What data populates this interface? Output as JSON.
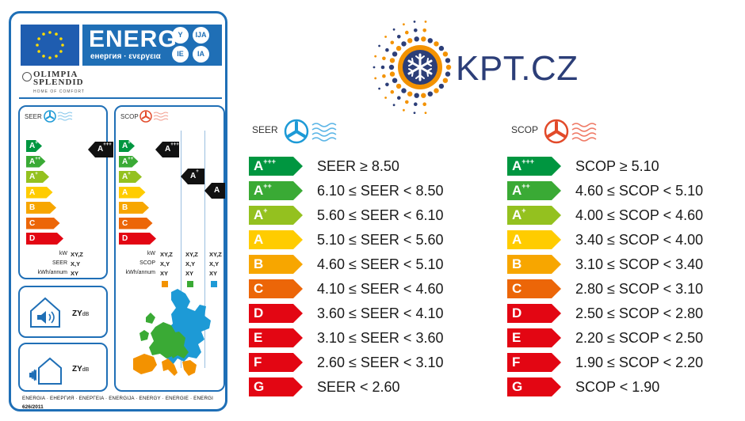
{
  "energy_label": {
    "energ_word": "ENERG",
    "energ_sub": "енергия · ενεργεια",
    "language_bubbles": [
      "Y",
      "IJA",
      "IE",
      "IA"
    ],
    "brand_name": "OLIMPIA SPLENDID",
    "brand_tagline": "HOME OF COMFORT",
    "seer_title": "SEER",
    "scop_title": "SCOP",
    "band_letters": [
      "A",
      "A",
      "A",
      "A",
      "B",
      "C",
      "D"
    ],
    "band_sups": [
      "+++",
      "++",
      "+",
      "",
      "",
      "",
      ""
    ],
    "band_colors": [
      "#009640",
      "#3aaa35",
      "#94c11f",
      "#ffcc00",
      "#f7a600",
      "#ec6608",
      "#e30613"
    ],
    "seer_rating": {
      "letter": "A",
      "sup": "+++"
    },
    "scop_ratings": [
      {
        "letter": "A",
        "sup": "+++"
      },
      {
        "letter": "A",
        "sup": "+"
      },
      {
        "letter": "A",
        "sup": ""
      }
    ],
    "seer_specs": {
      "labels": [
        "kW",
        "SEER",
        "kWh/annum"
      ],
      "values": [
        "XY,Z",
        "X,Y",
        "XY"
      ]
    },
    "scop_specs": {
      "labels": [
        "kW",
        "SCOP",
        "kWh/annum"
      ],
      "columns": [
        [
          "XY,Z",
          "X,Y",
          "XY"
        ],
        [
          "XY,Z",
          "X,Y",
          "XY"
        ],
        [
          "XY,Z",
          "X,Y",
          "XY"
        ]
      ],
      "column_colors": [
        "#f39200",
        "#3aaa35",
        "#1d9ad6"
      ]
    },
    "sound_indoor": "ZY",
    "sound_outdoor": "ZY",
    "sound_unit": "dB",
    "footer_languages": "ENERGIA · ЕНЕРГИЯ · ΕΝΕΡΓΕΙΑ · ENERGIJA · ENERGY · ENERGIE · ENERGI",
    "regulation": "626/2011"
  },
  "logo": {
    "text": "KPT.CZ",
    "icon": "snowflake-sun-icon"
  },
  "seer_table": {
    "title": "SEER",
    "rows": [
      {
        "cls": "A",
        "sup": "+++",
        "color": "#009640",
        "range": "SEER ≥ 8.50"
      },
      {
        "cls": "A",
        "sup": "++",
        "color": "#3aaa35",
        "range": "6.10 ≤ SEER < 8.50"
      },
      {
        "cls": "A",
        "sup": "+",
        "color": "#94c11f",
        "range": "5.60 ≤ SEER < 6.10"
      },
      {
        "cls": "A",
        "sup": "",
        "color": "#ffcc00",
        "range": "5.10 ≤ SEER < 5.60"
      },
      {
        "cls": "B",
        "sup": "",
        "color": "#f7a600",
        "range": "4.60 ≤ SEER < 5.10"
      },
      {
        "cls": "C",
        "sup": "",
        "color": "#ec6608",
        "range": "4.10 ≤ SEER < 4.60"
      },
      {
        "cls": "D",
        "sup": "",
        "color": "#e30613",
        "range": "3.60 ≤ SEER < 4.10"
      },
      {
        "cls": "E",
        "sup": "",
        "color": "#e30613",
        "range": "3.10 ≤ SEER < 3.60"
      },
      {
        "cls": "F",
        "sup": "",
        "color": "#e30613",
        "range": "2.60 ≤ SEER < 3.10"
      },
      {
        "cls": "G",
        "sup": "",
        "color": "#e30613",
        "range": "SEER < 2.60"
      }
    ]
  },
  "scop_table": {
    "title": "SCOP",
    "rows": [
      {
        "cls": "A",
        "sup": "+++",
        "color": "#009640",
        "range": "SCOP ≥ 5.10"
      },
      {
        "cls": "A",
        "sup": "++",
        "color": "#3aaa35",
        "range": "4.60 ≤ SCOP < 5.10"
      },
      {
        "cls": "A",
        "sup": "+",
        "color": "#94c11f",
        "range": "4.00 ≤ SCOP < 4.60"
      },
      {
        "cls": "A",
        "sup": "",
        "color": "#ffcc00",
        "range": "3.40 ≤ SCOP < 4.00"
      },
      {
        "cls": "B",
        "sup": "",
        "color": "#f7a600",
        "range": "3.10 ≤ SCOP < 3.40"
      },
      {
        "cls": "C",
        "sup": "",
        "color": "#ec6608",
        "range": "2.80 ≤ SCOP < 3.10"
      },
      {
        "cls": "D",
        "sup": "",
        "color": "#e30613",
        "range": "2.50 ≤ SCOP < 2.80"
      },
      {
        "cls": "E",
        "sup": "",
        "color": "#e30613",
        "range": "2.20 ≤ SCOP < 2.50"
      },
      {
        "cls": "F",
        "sup": "",
        "color": "#e30613",
        "range": "1.90 ≤ SCOP < 2.20"
      },
      {
        "cls": "G",
        "sup": "",
        "color": "#e30613",
        "range": "SCOP < 1.90"
      }
    ]
  }
}
